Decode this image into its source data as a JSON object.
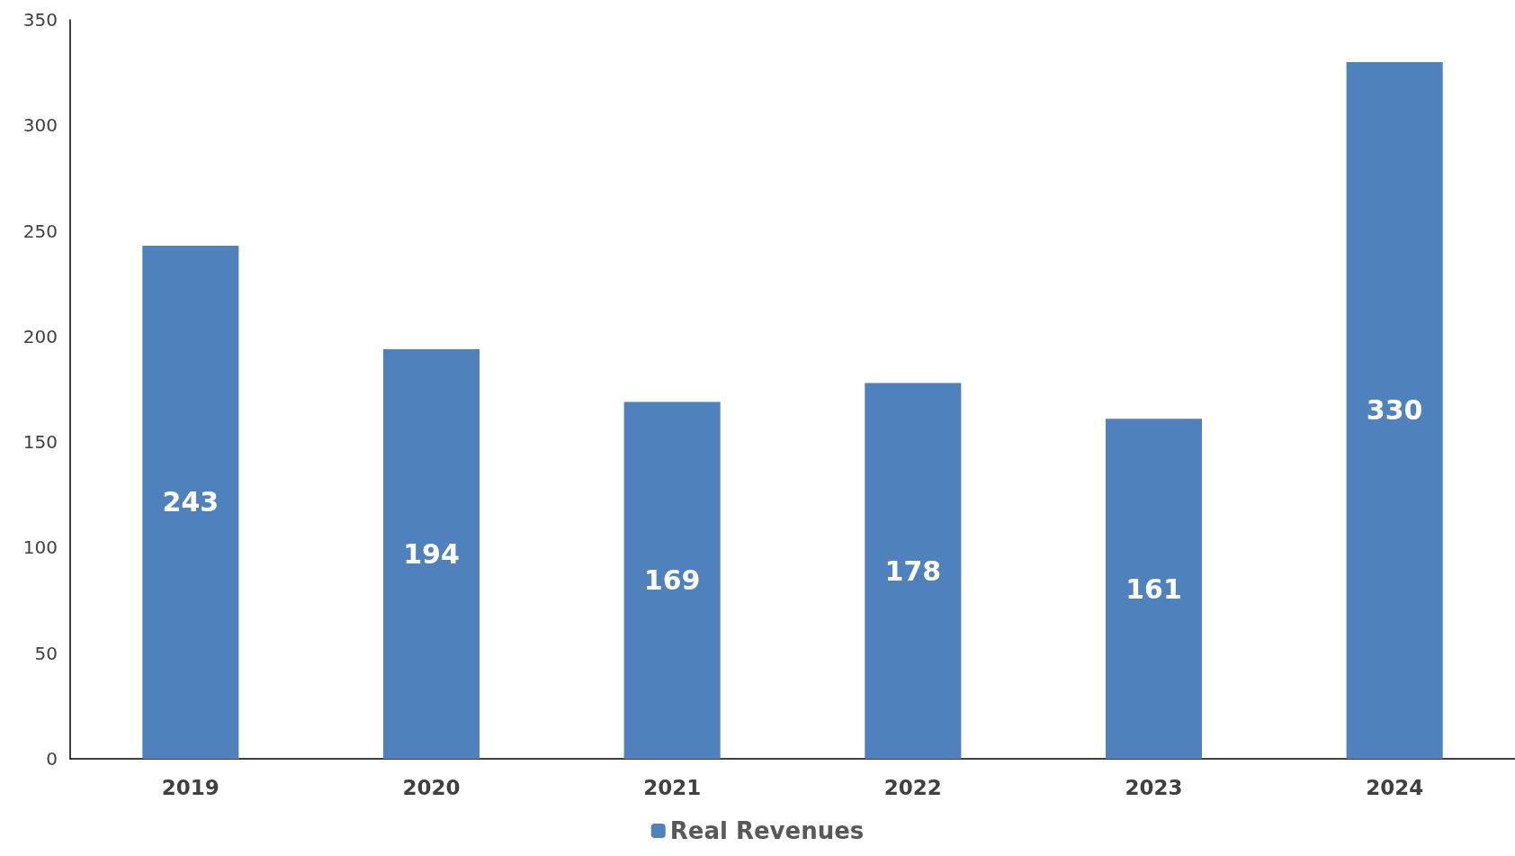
{
  "chart_data": {
    "type": "bar",
    "categories": [
      "2019",
      "2020",
      "2021",
      "2022",
      "2023",
      "2024"
    ],
    "series": [
      {
        "name": "Real Revenues",
        "color": "#4f81bd",
        "values": [
          243,
          194,
          169,
          178,
          161,
          330
        ]
      }
    ],
    "ylim": [
      0,
      350
    ],
    "yticks": [
      0,
      50,
      100,
      150,
      200,
      250,
      300,
      350
    ],
    "grid": false,
    "legend": "bottom",
    "data_labels": true
  }
}
